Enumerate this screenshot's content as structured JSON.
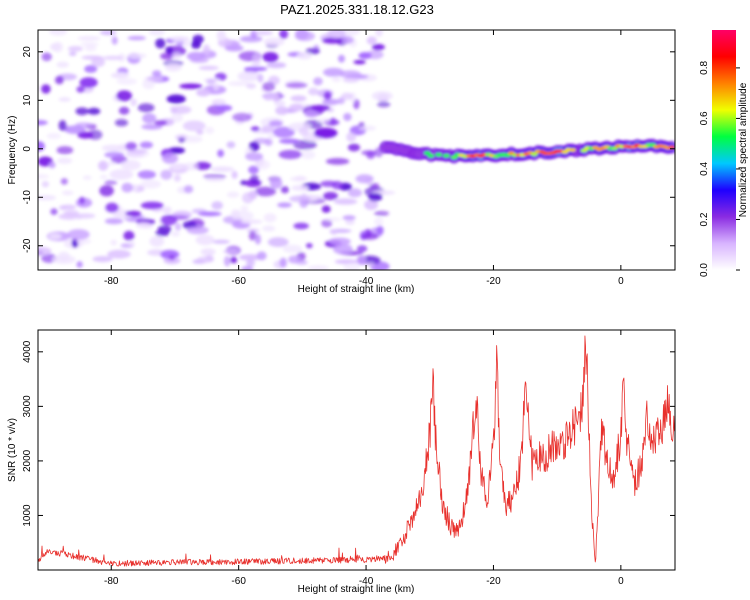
{
  "figure": {
    "title": "PAZ1.2025.331.18.12.G23"
  },
  "chart_data": [
    {
      "type": "heatmap",
      "name": "spectrogram",
      "title": "PAZ1.2025.331.18.12.G23",
      "xlabel": "Height of straight line (km)",
      "ylabel": "Frequency (Hz)",
      "xlim": [
        -91.5,
        8.5
      ],
      "ylim": [
        -25,
        24.5
      ],
      "xticks": [
        -80,
        -60,
        -40,
        -20,
        0
      ],
      "yticks": [
        -20,
        -10,
        0,
        10,
        20
      ],
      "noise_region_x": [
        -91.5,
        -37
      ],
      "signal_track": {
        "x": [
          -37,
          -34,
          -31,
          -28,
          -25,
          -22,
          -19,
          -16,
          -13,
          -10,
          -7,
          -4,
          -1,
          2,
          5,
          8.5
        ],
        "freq_hz": [
          0.3,
          -0.5,
          -1.0,
          -1.4,
          -1.5,
          -1.5,
          -1.3,
          -1.0,
          -0.8,
          -0.6,
          -0.3,
          0.0,
          0.3,
          0.5,
          0.5,
          0.5
        ],
        "peak_amplitude": [
          0.4,
          0.45,
          0.5,
          0.55,
          0.6,
          0.85,
          0.55,
          0.75,
          0.65,
          0.95,
          0.55,
          0.7,
          0.6,
          0.9,
          0.6,
          0.9
        ]
      }
    },
    {
      "type": "colorbar",
      "name": "amplitude-scale",
      "label": "Normalized spectral amplitude",
      "range": [
        0,
        0.95
      ],
      "ticks": [
        0.0,
        0.2,
        0.4,
        0.6,
        0.8
      ],
      "colors": [
        "#ffffff",
        "#d8b4ff",
        "#8a2be2",
        "#1e00ff",
        "#00c8ff",
        "#00ff40",
        "#f0ff00",
        "#ff8000",
        "#ff0000",
        "#ff0066"
      ]
    },
    {
      "type": "line",
      "name": "snr-profile",
      "xlabel": "Height of straight line (km)",
      "ylabel": "SNR (10 * v/v)",
      "xlim": [
        -91.5,
        8.5
      ],
      "ylim": [
        0,
        4400
      ],
      "xticks": [
        -80,
        -60,
        -40,
        -20,
        0
      ],
      "yticks": [
        1000,
        2000,
        3000,
        4000
      ],
      "color": "#e8302c",
      "key_points": {
        "x": [
          -91.5,
          -90,
          -80,
          -70,
          -60,
          -50,
          -40,
          -36,
          -34,
          -32,
          -31,
          -30,
          -29.5,
          -29,
          -28,
          -27,
          -26,
          -25,
          -24,
          -23,
          -22.5,
          -22,
          -21,
          -20,
          -19.5,
          -19,
          -18,
          -17,
          -16,
          -15,
          -14.5,
          -14,
          -13,
          -12,
          -11,
          -10,
          -9,
          -8,
          -7,
          -6,
          -5.5,
          -5,
          -4.5,
          -4,
          -3.5,
          -3,
          -2,
          -1,
          0,
          0.5,
          1,
          2,
          3,
          4,
          5,
          6,
          7,
          7.5,
          8,
          8.5
        ],
        "y": [
          150,
          350,
          120,
          140,
          150,
          170,
          190,
          240,
          600,
          1200,
          1600,
          2500,
          3300,
          2300,
          1200,
          900,
          650,
          900,
          1500,
          2800,
          2900,
          1800,
          1300,
          2300,
          3900,
          2000,
          1200,
          1300,
          1800,
          3100,
          3000,
          1900,
          2000,
          2100,
          2200,
          2200,
          2400,
          2500,
          2700,
          3100,
          4300,
          2600,
          900,
          100,
          1400,
          2600,
          1900,
          1700,
          2500,
          3500,
          2300,
          1600,
          1800,
          2800,
          2500,
          2400,
          2900,
          3300,
          2000,
          2800
        ]
      }
    }
  ]
}
